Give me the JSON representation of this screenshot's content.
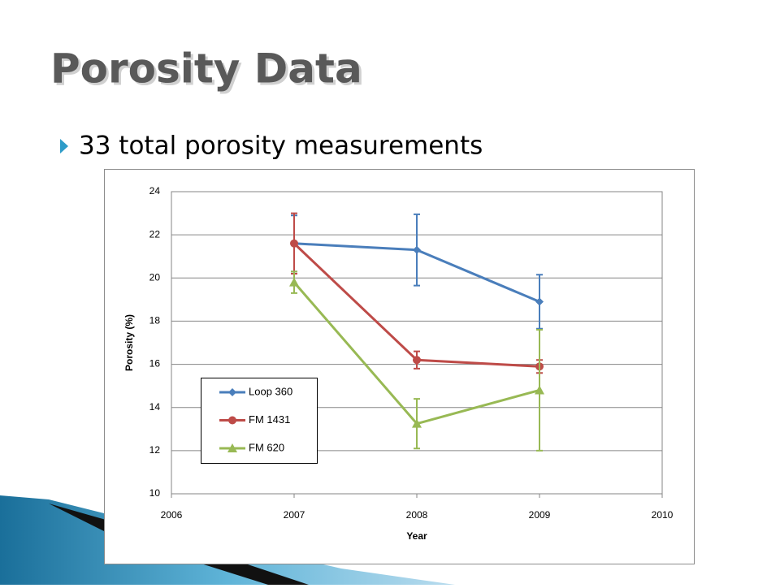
{
  "header": {
    "title": "Porosity Data",
    "bullet": "33 total porosity measurements"
  },
  "chart_data": {
    "type": "line",
    "x_label": "Year",
    "y_label": "Porosity (%)",
    "x": [
      2007,
      2008,
      2009
    ],
    "xlim": [
      2006,
      2010
    ],
    "xticks": [
      2006,
      2007,
      2008,
      2009,
      2010
    ],
    "ylim": [
      10,
      24
    ],
    "yticks": [
      10,
      12,
      14,
      16,
      18,
      20,
      22,
      24
    ],
    "grid": true,
    "series": [
      {
        "name": "Loop 360",
        "color": "#4a7ebb",
        "marker": "diamond",
        "values": [
          21.6,
          21.3,
          18.9
        ],
        "errors": [
          1.3,
          1.65,
          1.25
        ]
      },
      {
        "name": "FM 1431",
        "color": "#be4b48",
        "marker": "circle",
        "values": [
          21.6,
          16.2,
          15.9
        ],
        "errors": [
          1.4,
          0.4,
          0.3
        ]
      },
      {
        "name": "FM 620",
        "color": "#98b954",
        "marker": "triangle",
        "values": [
          19.8,
          13.25,
          14.8
        ],
        "errors": [
          0.5,
          1.15,
          2.8
        ]
      }
    ]
  }
}
